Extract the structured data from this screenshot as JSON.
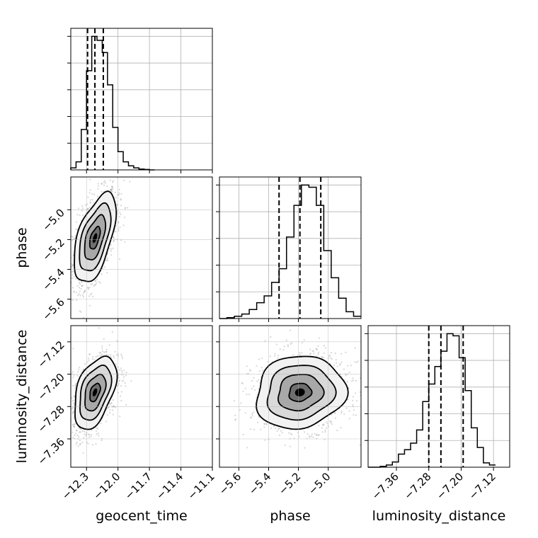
{
  "chart_data": {
    "type": "corner",
    "parameters": [
      "geocent_time",
      "phase",
      "luminosity_distance"
    ],
    "grid": true,
    "quantile_lines": "dashed",
    "colors": {
      "line": "#000000",
      "grid": "#b0b0b0",
      "scatter": "#8c8c8c"
    },
    "axes": {
      "geocent_time": {
        "range": [
          -12.45,
          -11.1
        ],
        "ticks": [
          -12.3,
          -12.0,
          -11.7,
          -11.4,
          -11.1
        ],
        "tick_labels": [
          "−12.3",
          "−12.0",
          "−11.7",
          "−11.4",
          "−11.1"
        ]
      },
      "phase": {
        "range": [
          -5.73,
          -4.78
        ],
        "ticks": [
          -5.6,
          -5.4,
          -5.2,
          -5.0
        ],
        "tick_labels": [
          "−5.6",
          "−5.4",
          "−5.2",
          "−5.0"
        ]
      },
      "luminosity_distance": {
        "range": [
          -7.43,
          -7.08
        ],
        "ticks": [
          -7.36,
          -7.28,
          -7.2,
          -7.12
        ],
        "tick_labels": [
          "−7.36",
          "−7.28",
          "−7.20",
          "−7.12"
        ]
      }
    },
    "histograms": {
      "geocent_time": {
        "bin_edges": [
          -12.45,
          -12.4,
          -12.35,
          -12.3,
          -12.25,
          -12.2,
          -12.15,
          -12.1,
          -12.05,
          -12.0,
          -11.95,
          -11.9,
          -11.85,
          -11.8,
          -11.75,
          -11.7,
          -11.65
        ],
        "counts": [
          0.05,
          0.2,
          1.0,
          2.45,
          3.3,
          3.2,
          2.9,
          2.1,
          1.05,
          0.45,
          0.2,
          0.1,
          0.05,
          0.02,
          0.01,
          0.0
        ],
        "quantiles": [
          -12.29,
          -12.22,
          -12.14
        ]
      },
      "phase": {
        "bin_edges": [
          -5.73,
          -5.68,
          -5.63,
          -5.58,
          -5.53,
          -5.48,
          -5.43,
          -5.38,
          -5.33,
          -5.28,
          -5.23,
          -5.18,
          -5.13,
          -5.08,
          -5.03,
          -4.98,
          -4.93,
          -4.88,
          -4.83,
          -4.78
        ],
        "counts": [
          0.0,
          0.02,
          0.05,
          0.1,
          0.2,
          0.35,
          0.5,
          0.8,
          1.1,
          1.8,
          2.5,
          2.95,
          2.9,
          2.5,
          1.5,
          0.9,
          0.45,
          0.15,
          0.05
        ],
        "quantiles": [
          -5.33,
          -5.19,
          -5.05
        ]
      },
      "luminosity_distance": {
        "bin_edges": [
          -7.43,
          -7.415,
          -7.4,
          -7.385,
          -7.37,
          -7.355,
          -7.34,
          -7.325,
          -7.31,
          -7.295,
          -7.28,
          -7.265,
          -7.25,
          -7.235,
          -7.22,
          -7.205,
          -7.19,
          -7.175,
          -7.16,
          -7.145,
          -7.13,
          -7.115
        ],
        "counts": [
          0.0,
          0.0,
          0.02,
          0.05,
          0.12,
          0.3,
          0.4,
          0.55,
          0.85,
          1.5,
          1.9,
          2.3,
          2.65,
          3.05,
          3.0,
          2.5,
          1.75,
          0.9,
          0.45,
          0.1,
          0.05
        ],
        "quantiles": [
          -7.28,
          -7.25,
          -7.195
        ]
      }
    },
    "joint": [
      {
        "x": "geocent_time",
        "y": "phase",
        "mean": [
          -12.22,
          -5.19
        ],
        "sd": [
          0.1,
          0.15
        ],
        "rho": 0.55,
        "contour_levels": [
          0.5,
          1.0,
          1.5,
          2.0
        ]
      },
      {
        "x": "geocent_time",
        "y": "luminosity_distance",
        "mean": [
          -12.22,
          -7.245
        ],
        "sd": [
          0.1,
          0.045
        ],
        "rho": 0.45,
        "contour_levels": [
          0.5,
          1.0,
          1.5,
          2.0
        ]
      },
      {
        "x": "phase",
        "y": "luminosity_distance",
        "mean": [
          -5.19,
          -7.245
        ],
        "sd": [
          0.15,
          0.045
        ],
        "rho": 0.1,
        "contour_levels": [
          0.5,
          1.0,
          1.5,
          2.0
        ]
      }
    ]
  }
}
